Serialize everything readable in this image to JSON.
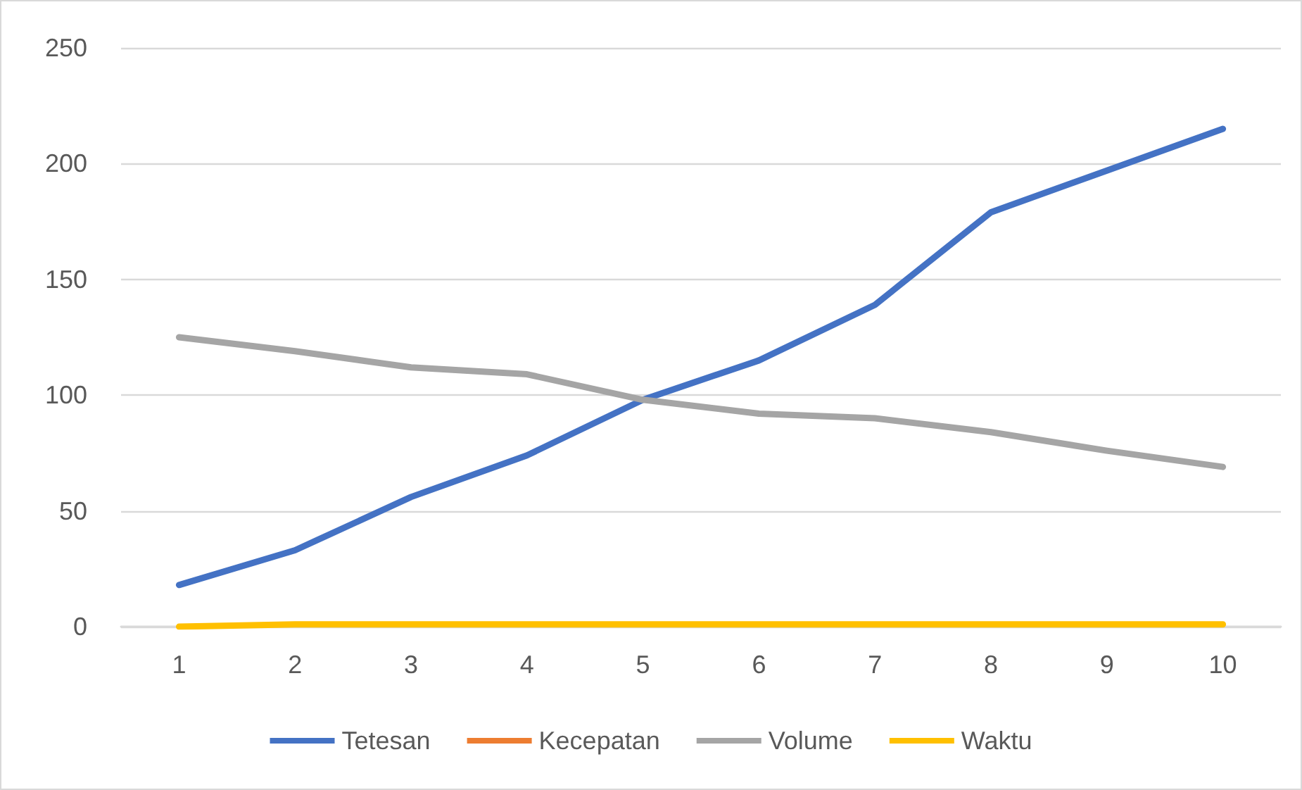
{
  "chart_data": {
    "type": "line",
    "categories": [
      "1",
      "2",
      "3",
      "4",
      "5",
      "6",
      "7",
      "8",
      "9",
      "10"
    ],
    "series": [
      {
        "name": "Tetesan",
        "color": "#4472c4",
        "values": [
          18,
          33,
          56,
          74,
          98,
          115,
          139,
          179,
          197,
          215
        ]
      },
      {
        "name": "Kecepatan",
        "color": "#ed7d31",
        "values": [
          null,
          null,
          null,
          null,
          null,
          null,
          null,
          null,
          null,
          null
        ]
      },
      {
        "name": "Volume",
        "color": "#a5a5a5",
        "values": [
          125,
          119,
          112,
          109,
          98,
          92,
          90,
          84,
          76,
          69
        ]
      },
      {
        "name": "Waktu",
        "color": "#ffc000",
        "values": [
          0,
          1,
          1,
          1,
          1,
          1,
          1,
          1,
          1,
          1
        ]
      }
    ],
    "ylim": [
      0,
      250
    ],
    "yticks": [
      0,
      50,
      100,
      150,
      200,
      250
    ],
    "grid": "y",
    "legend": "bottom",
    "marker": "none",
    "line_style": "solid"
  }
}
